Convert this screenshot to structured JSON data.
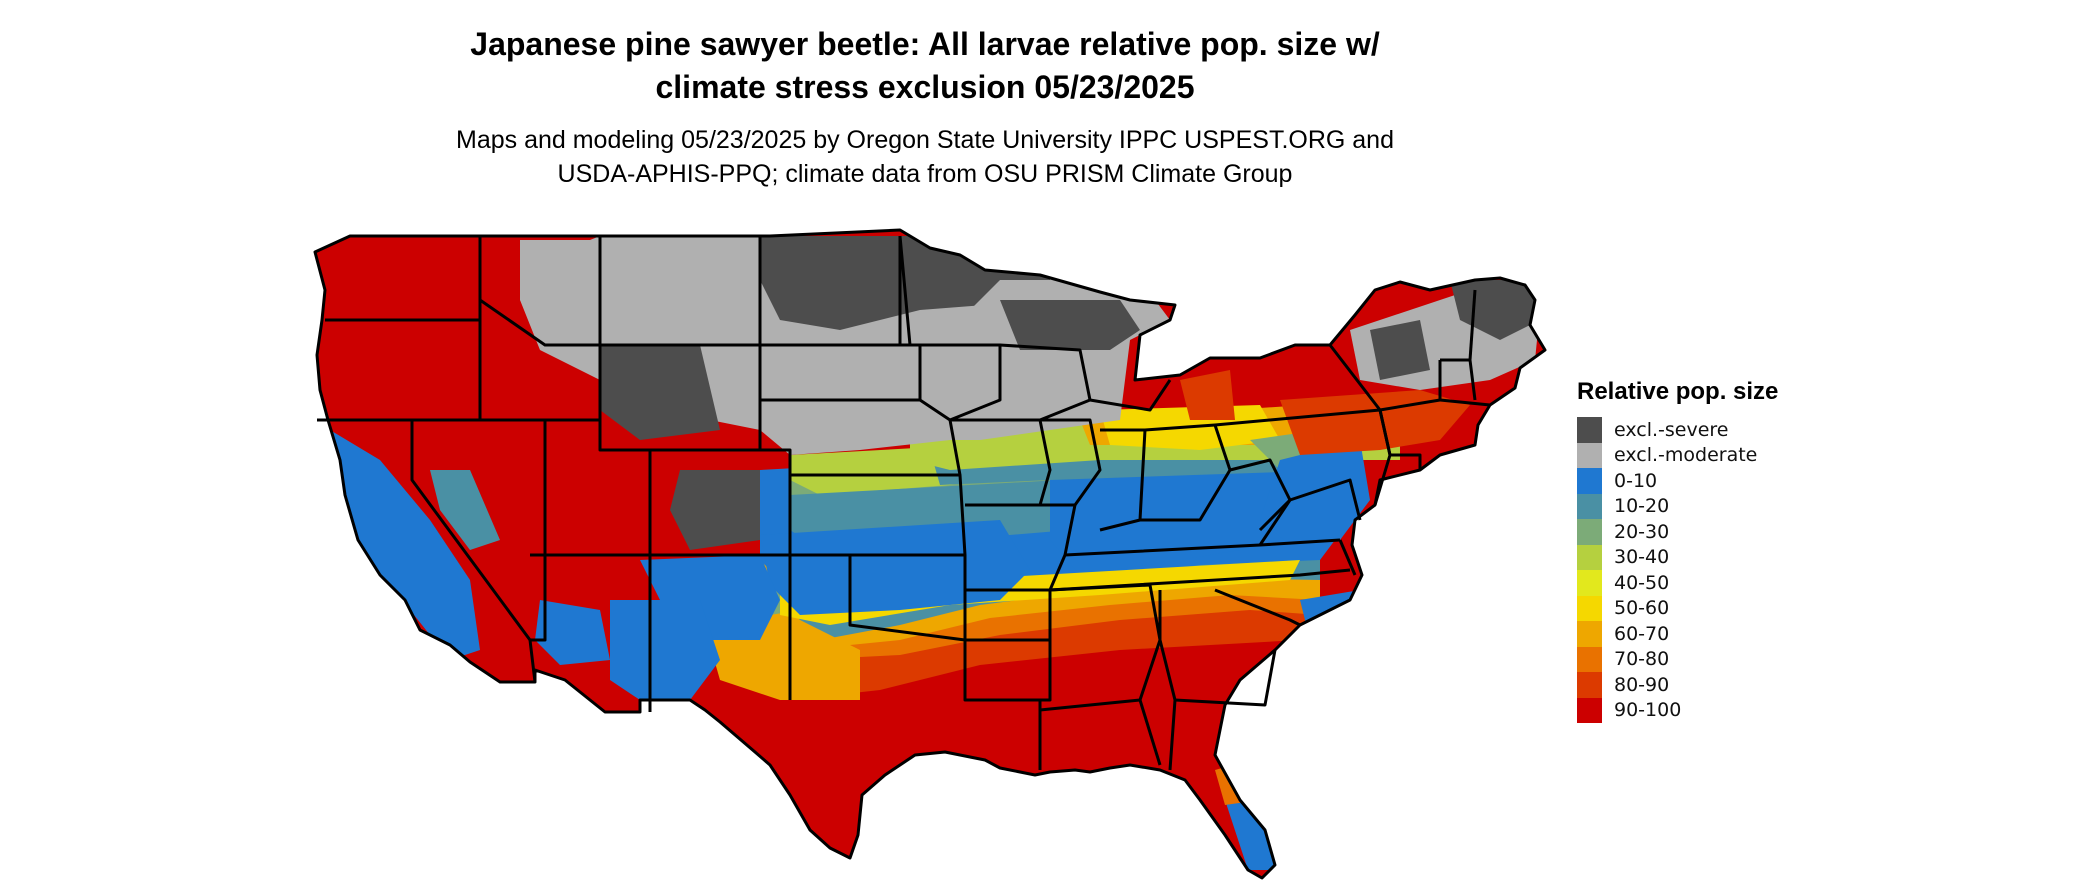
{
  "title": {
    "line1": "Japanese pine sawyer beetle: All larvae relative pop. size w/",
    "line2": "climate stress exclusion 05/23/2025"
  },
  "subtitle": {
    "line1": "Maps and modeling 05/23/2025 by Oregon State University IPPC USPEST.ORG and",
    "line2": "USDA-APHIS-PPQ; climate data from OSU PRISM Climate Group"
  },
  "legend": {
    "title": "Relative pop. size",
    "items": [
      {
        "label": "excl.-severe",
        "color": "#4d4d4d"
      },
      {
        "label": "excl.-moderate",
        "color": "#b0b0b0"
      },
      {
        "label": "0-10",
        "color": "#1f78d1"
      },
      {
        "label": "10-20",
        "color": "#4a90a4"
      },
      {
        "label": "20-30",
        "color": "#7cab78"
      },
      {
        "label": "30-40",
        "color": "#b5d03f"
      },
      {
        "label": "40-50",
        "color": "#e2e81d"
      },
      {
        "label": "50-60",
        "color": "#f5d800"
      },
      {
        "label": "60-70",
        "color": "#eea700"
      },
      {
        "label": "70-80",
        "color": "#e97200"
      },
      {
        "label": "80-90",
        "color": "#dc3a00"
      },
      {
        "label": "90-100",
        "color": "#cc0000"
      }
    ]
  },
  "map": {
    "region": "Contiguous United States",
    "boundary_color": "#000000"
  }
}
